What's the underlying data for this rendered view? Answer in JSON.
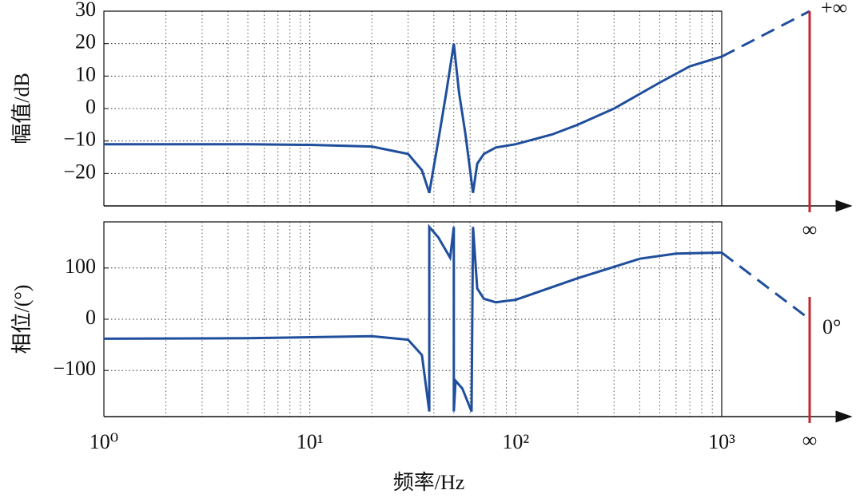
{
  "chart_data": [
    {
      "type": "line",
      "y_label": "幅值/dB",
      "log_x": true,
      "grid": true,
      "xlim": [
        1,
        1000
      ],
      "xticks": [
        1,
        10,
        100,
        1000
      ],
      "ylim": [
        -30,
        30
      ],
      "yticks": [
        30,
        20,
        10,
        0,
        {
          "value": -10,
          "label": "−10"
        },
        {
          "value": -20,
          "label": "−20"
        }
      ],
      "series": [
        {
          "color": "#1f4e9c",
          "x": [
            1,
            5,
            10,
            20,
            30,
            35,
            38,
            42,
            46,
            50,
            53,
            57,
            62,
            65,
            70,
            80,
            100,
            150,
            200,
            300,
            500,
            700,
            1000
          ],
          "values": [
            -11,
            -11,
            -11.2,
            -11.7,
            -14,
            -19,
            -26,
            -10,
            5,
            20,
            5,
            -8,
            -26,
            -17,
            -14,
            -12,
            -11,
            -8,
            -5,
            0,
            8,
            13,
            16
          ]
        }
      ],
      "end_label": {
        "value": 30,
        "label": "+∞"
      },
      "infinity_label": "∞"
    },
    {
      "type": "line",
      "y_label": "相位/(°)",
      "x_label": "频率/Hz",
      "log_x": true,
      "grid": true,
      "xlim": [
        1,
        1000
      ],
      "xticks": [
        {
          "value": 1,
          "label": "10⁰"
        },
        {
          "value": 10,
          "label": "10¹"
        },
        {
          "value": 100,
          "label": "10²"
        },
        {
          "value": 1000,
          "label": "10³"
        }
      ],
      "ylim": [
        -190,
        190
      ],
      "yticks": [
        100,
        0,
        {
          "value": -100,
          "label": "−100"
        }
      ],
      "series": [
        {
          "color": "#1f4e9c",
          "x": [
            1,
            5,
            10,
            20,
            30,
            35,
            38,
            38,
            42,
            48,
            50,
            50,
            51,
            55,
            61,
            62,
            65,
            70,
            80,
            100,
            200,
            400,
            600,
            1000
          ],
          "values": [
            -38,
            -37,
            -35,
            -33,
            -40,
            -70,
            -180,
            180,
            160,
            120,
            180,
            -180,
            -120,
            -135,
            -180,
            180,
            60,
            40,
            33,
            38,
            80,
            118,
            128,
            130
          ]
        }
      ],
      "end_label": {
        "value": 0,
        "label": "0°"
      },
      "infinity_label": "∞"
    }
  ]
}
